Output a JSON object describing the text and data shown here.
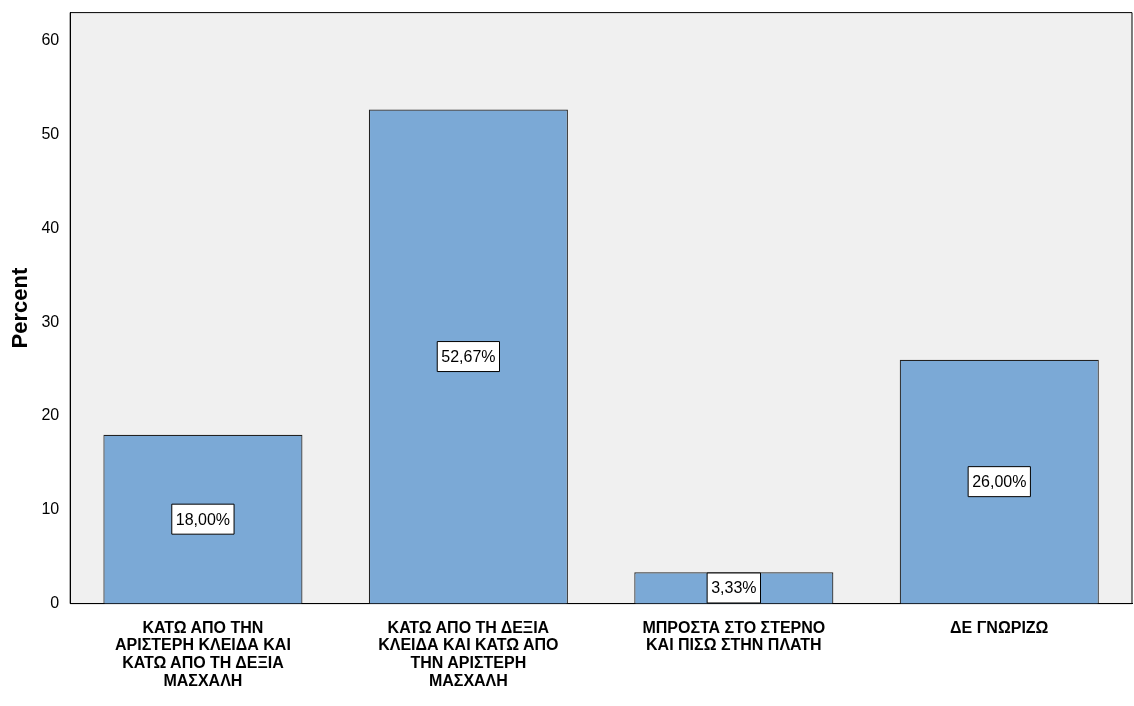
{
  "chart_data": {
    "type": "bar",
    "ylabel": "Percent",
    "categories": [
      "ΚΑΤΩ ΑΠΟ ΤΗΝ ΑΡΙΣΤΕΡΗ ΚΛΕΙΔΑ ΚΑΙ ΚΑΤΩ ΑΠΟ ΤΗ ΔΕΞΙΑ ΜΑΣΧΑΛΗ",
      "ΚΑΤΩ ΑΠΟ ΤΗ ΔΕΞΙΑ ΚΛΕΙΔΑ ΚΑΙ ΚΑΤΩ ΑΠΟ ΤΗΝ ΑΡΙΣΤΕΡΗ ΜΑΣΧΑΛΗ",
      "ΜΠΡΟΣΤΑ ΣΤΟ ΣΤΕΡΝΟ ΚΑΙ ΠΙΣΩ ΣΤΗΝ ΠΛΑΤΗ",
      "ΔΕ ΓΝΩΡΙΖΩ"
    ],
    "values": [
      18,
      52.67,
      3.33,
      26
    ],
    "value_labels": [
      "18,00%",
      "52,67%",
      "3,33%",
      "26,00%"
    ],
    "color": "#7ba9d6",
    "ylim": [
      0,
      63
    ],
    "yticks": [
      0,
      10,
      20,
      30,
      40,
      50,
      60
    ],
    "grid": false
  }
}
